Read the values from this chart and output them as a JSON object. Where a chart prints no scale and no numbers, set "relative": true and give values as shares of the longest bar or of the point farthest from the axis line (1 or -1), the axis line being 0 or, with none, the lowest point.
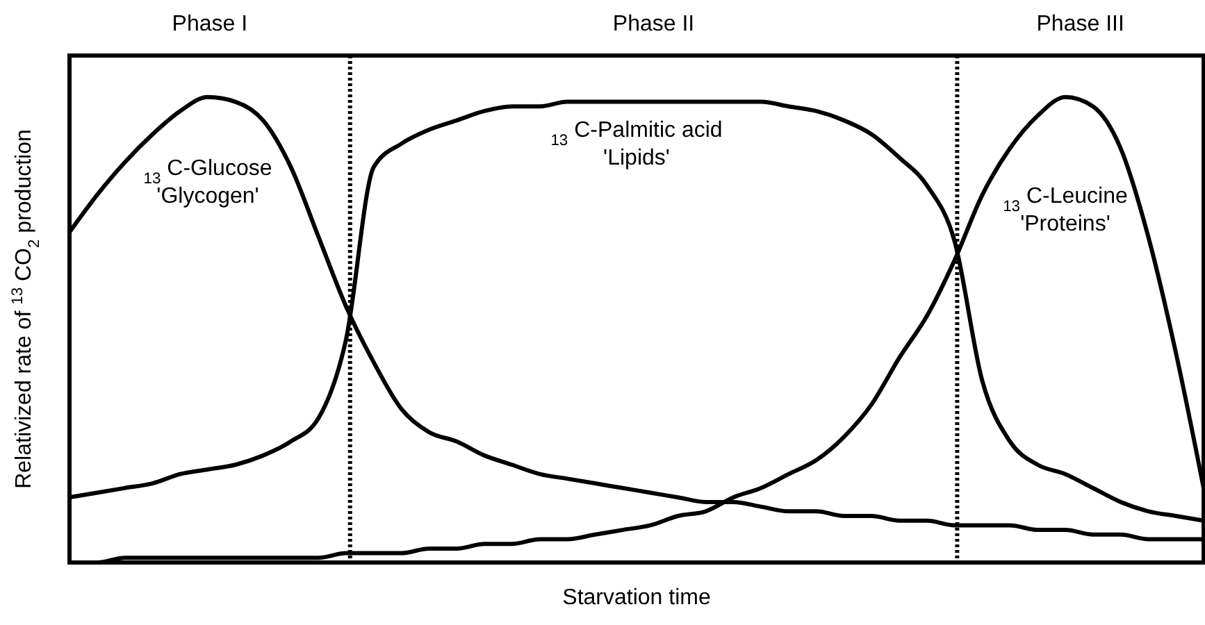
{
  "chart_data": {
    "type": "line",
    "relative": true,
    "xlabel": "Starvation time",
    "ylabel": "Relativized rate of $^{13}$CO$_{2}$production",
    "categories": [
      null,
      null,
      null,
      null,
      null,
      null,
      null,
      null,
      null,
      null,
      null,
      null,
      null,
      null,
      null,
      null,
      null,
      null,
      null,
      null,
      null,
      null,
      null,
      null,
      null,
      null,
      null,
      null,
      null,
      null,
      null,
      null,
      null,
      null,
      null,
      null,
      null,
      null,
      null,
      null,
      null,
      null
    ],
    "series": [
      {
        "name": "$_{13}$C-Glucose\n'Glycogen'",
        "color": "#000000",
        "values": [
          0.71,
          0.79,
          0.86,
          0.92,
          0.97,
          1.0,
          0.99,
          0.95,
          0.85,
          0.7,
          0.55,
          0.43,
          0.33,
          0.28,
          0.26,
          0.23,
          0.21,
          0.19,
          0.18,
          0.17,
          0.16,
          0.15,
          0.14,
          0.13,
          0.13,
          0.12,
          0.11,
          0.11,
          0.1,
          0.1,
          0.09,
          0.09,
          0.08,
          0.08,
          0.08,
          0.07,
          0.07,
          0.06,
          0.06,
          0.05,
          0.05,
          0.05
        ]
      },
      {
        "name": "$_{13}$C-Palmitic acid\n'Lipids'",
        "color": "#000000",
        "values": [
          0.14,
          0.15,
          0.16,
          0.17,
          0.19,
          0.2,
          0.21,
          0.23,
          0.26,
          0.31,
          0.48,
          0.85,
          0.9,
          0.93,
          0.95,
          0.97,
          0.98,
          0.98,
          0.99,
          0.99,
          0.99,
          0.99,
          0.99,
          0.99,
          0.99,
          0.99,
          0.98,
          0.97,
          0.95,
          0.92,
          0.87,
          0.81,
          0.69,
          0.39,
          0.26,
          0.21,
          0.19,
          0.16,
          0.13,
          0.11,
          0.1,
          0.09
        ]
      },
      {
        "name": "$_{13}$C-Leucine\n'Proteins'",
        "color": "#000000",
        "values": [
          0.0,
          0.0,
          0.01,
          0.01,
          0.01,
          0.01,
          0.01,
          0.01,
          0.01,
          0.01,
          0.02,
          0.02,
          0.02,
          0.03,
          0.03,
          0.04,
          0.04,
          0.05,
          0.05,
          0.06,
          0.07,
          0.08,
          0.1,
          0.11,
          0.14,
          0.16,
          0.19,
          0.22,
          0.27,
          0.34,
          0.44,
          0.53,
          0.65,
          0.79,
          0.89,
          0.96,
          1.0,
          0.98,
          0.89,
          0.7,
          0.45,
          0.16
        ]
      }
    ],
    "annotations": [
      "Phase I",
      "Phase II",
      "Phase III"
    ],
    "line_style": "solid",
    "marker": "none",
    "legend": false
  }
}
